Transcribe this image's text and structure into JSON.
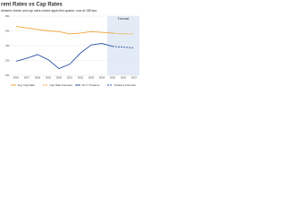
{
  "chart_data": {
    "type": "line",
    "title": "rent Rates vs Cap Rates",
    "subtitle": "between bonds and cap rates closed again this quarter, now at 188 bps.",
    "forecast_label": "Forecast",
    "forecast_from": "2025",
    "categories": [
      "2016",
      "2017",
      "2018",
      "2019",
      "2020",
      "2021",
      "2022",
      "2023",
      "2024",
      "2025",
      "2026",
      "2027"
    ],
    "series": [
      {
        "name": "Avg. Cap Rate",
        "color": "#f2a33a",
        "dash": false,
        "values": [
          6.6,
          6.4,
          6.2,
          6.0,
          5.9,
          5.6,
          5.7,
          5.9,
          5.8,
          5.7,
          null,
          null
        ]
      },
      {
        "name": "Cap Rate Forecast",
        "color": "#f2a33a",
        "dash": true,
        "values": [
          null,
          null,
          null,
          null,
          null,
          null,
          null,
          null,
          null,
          5.7,
          5.6,
          5.6
        ]
      },
      {
        "name": "10-Yr Treasury",
        "color": "#2f55a4",
        "dash": false,
        "values": [
          1.9,
          2.3,
          2.8,
          2.1,
          0.9,
          1.5,
          3.0,
          4.1,
          4.3,
          3.9,
          null,
          null
        ]
      },
      {
        "name": "Treasury Forecast",
        "color": "#2f55a4",
        "dash": true,
        "values": [
          null,
          null,
          null,
          null,
          null,
          null,
          null,
          null,
          null,
          3.9,
          3.8,
          3.7
        ]
      }
    ],
    "ylim": [
      0,
      8
    ],
    "yticks": [
      {
        "value": 0,
        "label": "0%"
      },
      {
        "value": 2,
        "label": "2%"
      },
      {
        "value": 4,
        "label": "4%"
      },
      {
        "value": 6,
        "label": "6%"
      },
      {
        "value": 8,
        "label": "8%"
      }
    ],
    "grid": true
  }
}
